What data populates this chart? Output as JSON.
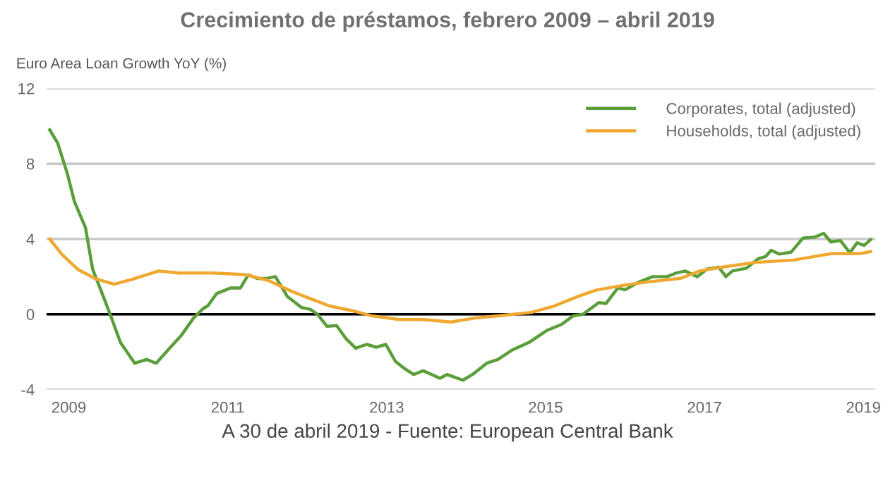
{
  "chart_data": {
    "type": "line",
    "title": "Crecimiento de préstamos, febrero 2009 – abril 2019",
    "ylabel": "Euro Area Loan Growth YoY (%)",
    "annotations": [
      "A 30 de abril 2019 - Fuente: European Central Bank"
    ],
    "xlim": [
      2008.72,
      2019.15
    ],
    "xticks": [
      2009,
      2011,
      2013,
      2015,
      2017,
      2019
    ],
    "ylim": [
      -4,
      12
    ],
    "yticks": [
      -4,
      0,
      4,
      8,
      12
    ],
    "grid": "y",
    "legend": "top right",
    "ref_lines": [
      {
        "axis": "y",
        "value": 0,
        "color": "#000000"
      }
    ],
    "series": [
      {
        "name": "Corporates, total (adjusted)",
        "color": "#5a9e3a",
        "x": [
          2008.76,
          2008.86,
          2008.98,
          2009.07,
          2009.14,
          2009.21,
          2009.3,
          2009.42,
          2009.52,
          2009.65,
          2009.83,
          2009.98,
          2010.1,
          2010.27,
          2010.42,
          2010.57,
          2010.69,
          2010.75,
          2010.86,
          2011.04,
          2011.16,
          2011.26,
          2011.37,
          2011.48,
          2011.6,
          2011.75,
          2011.93,
          2012.04,
          2012.13,
          2012.25,
          2012.37,
          2012.49,
          2012.61,
          2012.75,
          2012.87,
          2012.99,
          2013.11,
          2013.23,
          2013.34,
          2013.46,
          2013.67,
          2013.76,
          2013.96,
          2014.08,
          2014.26,
          2014.4,
          2014.58,
          2014.79,
          2015.02,
          2015.2,
          2015.35,
          2015.47,
          2015.67,
          2015.76,
          2015.91,
          2016.0,
          2016.17,
          2016.35,
          2016.53,
          2016.65,
          2016.76,
          2016.91,
          2017.03,
          2017.18,
          2017.27,
          2017.35,
          2017.53,
          2017.68,
          2017.77,
          2017.84,
          2017.94,
          2018.09,
          2018.24,
          2018.39,
          2018.5,
          2018.59,
          2018.71,
          2018.83,
          2018.92,
          2019.01,
          2019.09
        ],
        "values": [
          9.8,
          9.1,
          7.5,
          6.0,
          5.3,
          4.6,
          2.4,
          1.1,
          0.0,
          -1.5,
          -2.6,
          -2.4,
          -2.6,
          -1.8,
          -1.1,
          -0.2,
          0.3,
          0.45,
          1.1,
          1.4,
          1.4,
          2.1,
          1.9,
          1.9,
          2.0,
          0.95,
          0.36,
          0.26,
          0.0,
          -0.64,
          -0.6,
          -1.3,
          -1.8,
          -1.6,
          -1.75,
          -1.6,
          -2.5,
          -2.9,
          -3.2,
          -3.0,
          -3.4,
          -3.2,
          -3.5,
          -3.2,
          -2.6,
          -2.4,
          -1.9,
          -1.5,
          -0.85,
          -0.54,
          -0.08,
          0.0,
          0.62,
          0.57,
          1.4,
          1.3,
          1.7,
          2.0,
          2.0,
          2.2,
          2.3,
          2.0,
          2.4,
          2.5,
          2.0,
          2.3,
          2.45,
          2.96,
          3.07,
          3.4,
          3.2,
          3.3,
          4.05,
          4.1,
          4.3,
          3.84,
          3.92,
          3.27,
          3.8,
          3.66,
          3.97
        ]
      },
      {
        "name": "Households, total (adjusted)",
        "color": "#f0a830",
        "x": [
          2008.76,
          2008.92,
          2009.12,
          2009.33,
          2009.57,
          2009.8,
          2010.13,
          2010.39,
          2010.81,
          2011.22,
          2011.51,
          2011.81,
          2012.04,
          2012.28,
          2012.58,
          2012.81,
          2013.16,
          2013.46,
          2013.81,
          2014.11,
          2014.4,
          2014.82,
          2015.11,
          2015.41,
          2015.64,
          2016.0,
          2016.29,
          2016.7,
          2016.94,
          2017.29,
          2017.65,
          2018.12,
          2018.59,
          2018.95,
          2019.09
        ],
        "values": [
          4.0,
          3.15,
          2.37,
          1.9,
          1.6,
          1.86,
          2.3,
          2.19,
          2.19,
          2.11,
          1.8,
          1.21,
          0.83,
          0.44,
          0.18,
          -0.08,
          -0.28,
          -0.28,
          -0.41,
          -0.2,
          -0.08,
          0.1,
          0.44,
          0.95,
          1.29,
          1.55,
          1.72,
          1.91,
          2.3,
          2.55,
          2.76,
          2.88,
          3.22,
          3.22,
          3.33
        ]
      }
    ]
  }
}
